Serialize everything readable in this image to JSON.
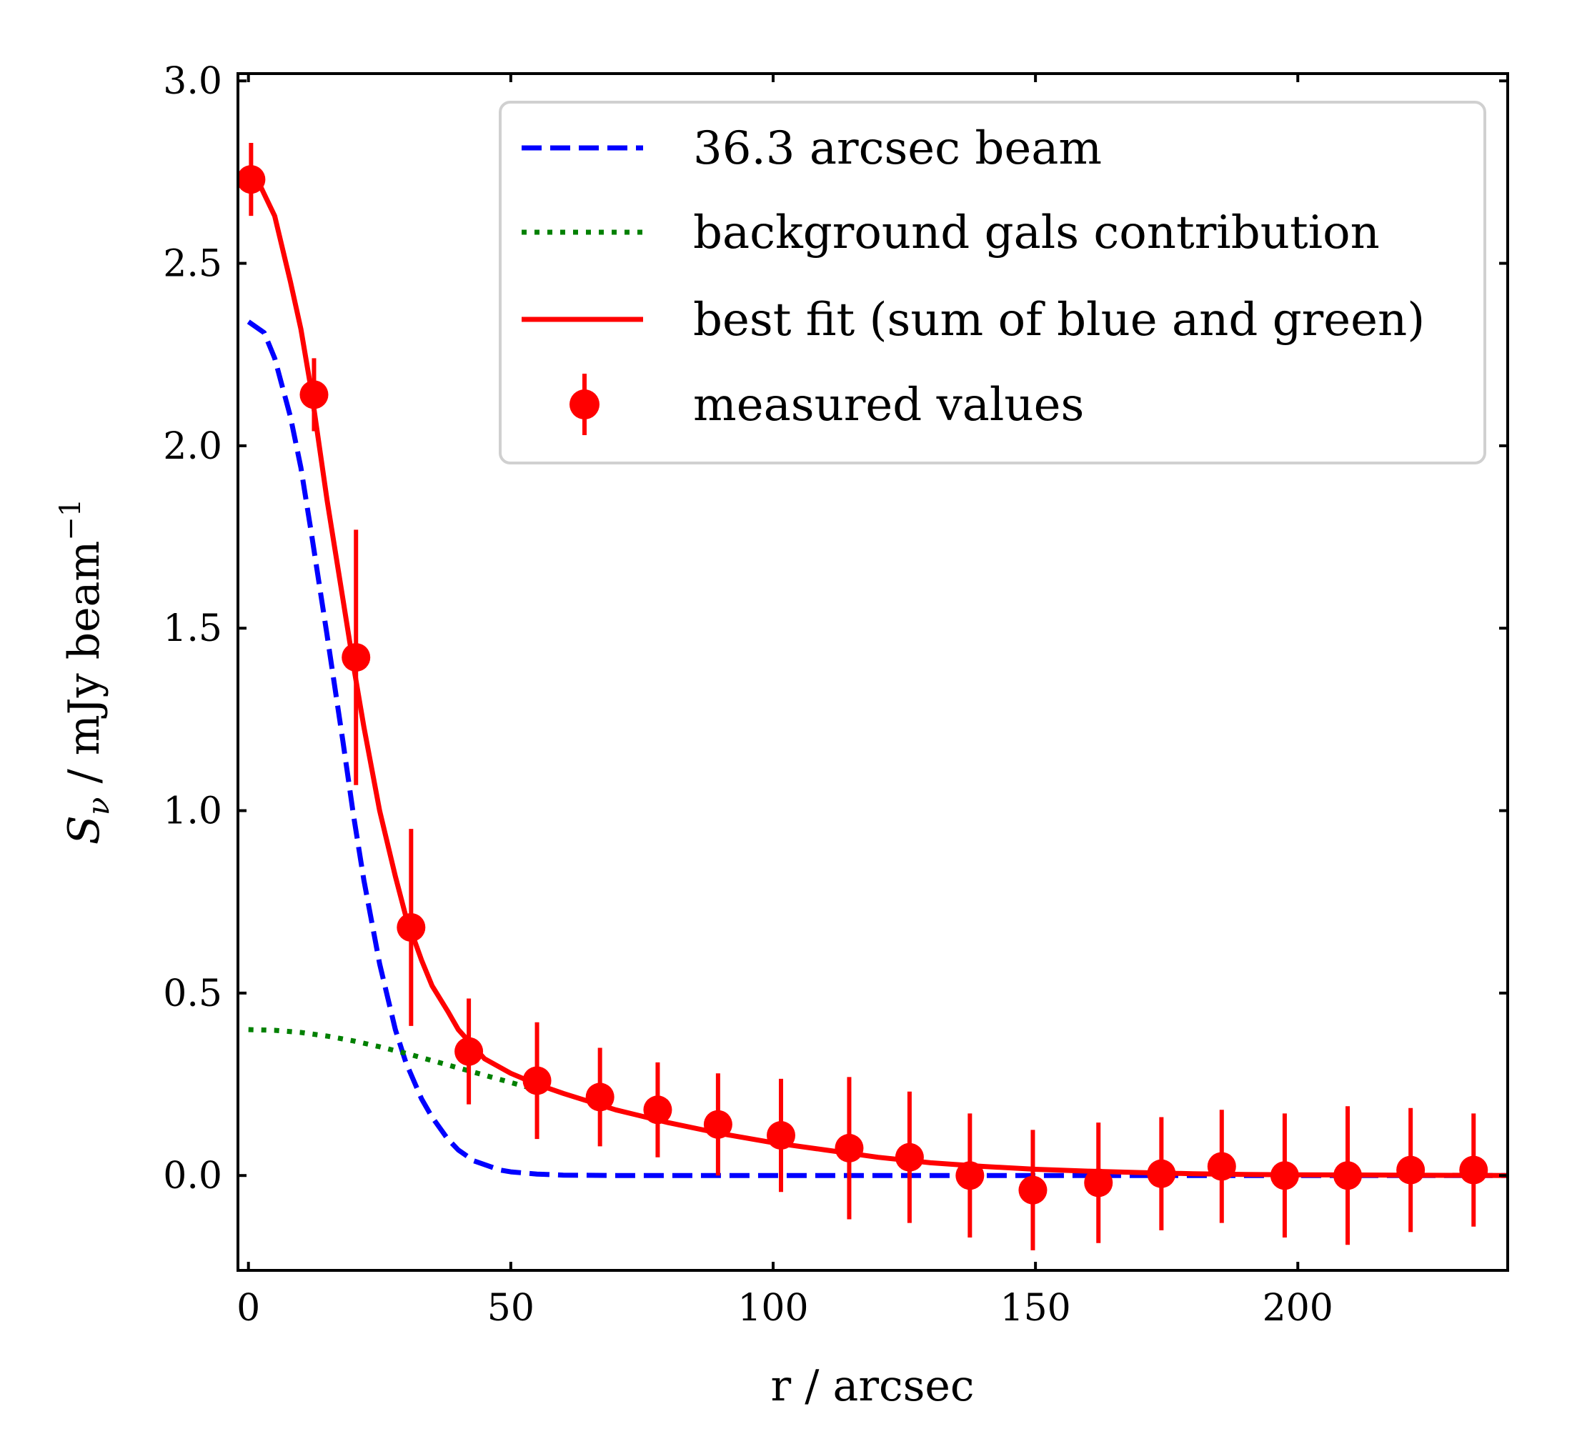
{
  "chart_data": {
    "type": "line",
    "title": "",
    "xlabel": "r / arcsec",
    "ylabel_main": "S",
    "ylabel_subscript": "ν",
    "ylabel_rest": " / mJy beam",
    "ylabel_superscript": "−1",
    "xlim": [
      -2,
      240
    ],
    "ylim": [
      -0.26,
      3.02
    ],
    "xticks": [
      0,
      50,
      100,
      150,
      200
    ],
    "xtick_labels": [
      "0",
      "50",
      "100",
      "150",
      "200"
    ],
    "yticks": [
      0.0,
      0.5,
      1.0,
      1.5,
      2.0,
      2.5,
      3.0
    ],
    "ytick_labels": [
      "0.0",
      "0.5",
      "1.0",
      "1.5",
      "2.0",
      "2.5",
      "3.0"
    ],
    "grid": false,
    "legend_position": "top-right",
    "series": [
      {
        "name": "36.3 arcsec beam",
        "style": "dashed",
        "color": "#0000ff",
        "x": [
          0,
          3,
          5,
          8,
          10,
          12,
          15,
          18,
          20,
          22,
          25,
          28,
          30,
          33,
          35,
          38,
          40,
          43,
          45,
          48,
          50,
          55,
          60,
          70,
          80,
          90,
          100,
          120,
          140,
          160,
          180,
          200,
          220,
          240
        ],
        "y": [
          2.34,
          2.31,
          2.24,
          2.08,
          1.94,
          1.76,
          1.48,
          1.19,
          0.99,
          0.81,
          0.58,
          0.4,
          0.31,
          0.21,
          0.16,
          0.1,
          0.07,
          0.04,
          0.03,
          0.015,
          0.01,
          0.004,
          0.001,
          0,
          0,
          0,
          0,
          0,
          0,
          0,
          0,
          0,
          0,
          0
        ]
      },
      {
        "name": "background gals contribution",
        "style": "dotted",
        "color": "#008000",
        "x": [
          0,
          5,
          10,
          15,
          20,
          25,
          30,
          35,
          40,
          45,
          50,
          55
        ],
        "y": [
          0.4,
          0.398,
          0.392,
          0.382,
          0.369,
          0.353,
          0.335,
          0.315,
          0.295,
          0.275,
          0.255,
          0.235
        ]
      },
      {
        "name": "best fit (sum of blue and green)",
        "style": "solid",
        "color": "#ff0000",
        "x": [
          0,
          2,
          5,
          8,
          10,
          12,
          15,
          18,
          20,
          22,
          25,
          28,
          30,
          33,
          35,
          38,
          40,
          45,
          50,
          55,
          60,
          70,
          80,
          90,
          100,
          110,
          120,
          130,
          140,
          150,
          160,
          170,
          180,
          190,
          200,
          220,
          240
        ],
        "y": [
          2.74,
          2.72,
          2.63,
          2.45,
          2.32,
          2.15,
          1.85,
          1.58,
          1.4,
          1.23,
          1.0,
          0.82,
          0.71,
          0.59,
          0.52,
          0.45,
          0.4,
          0.32,
          0.28,
          0.25,
          0.225,
          0.18,
          0.145,
          0.115,
          0.09,
          0.07,
          0.05,
          0.035,
          0.025,
          0.017,
          0.012,
          0.008,
          0.005,
          0.003,
          0.002,
          0.001,
          0.0
        ]
      }
    ],
    "points": {
      "name": "measured values",
      "color": "#ff0000",
      "x": [
        0.5,
        12.5,
        20.5,
        31,
        42,
        55,
        67,
        78,
        89.5,
        101.5,
        114.5,
        126,
        137.5,
        149.5,
        162,
        174,
        185.5,
        197.5,
        209.5,
        221.5,
        233.5
      ],
      "y": [
        2.73,
        2.14,
        1.42,
        0.68,
        0.34,
        0.26,
        0.215,
        0.18,
        0.14,
        0.11,
        0.075,
        0.05,
        0.0,
        -0.04,
        -0.02,
        0.005,
        0.025,
        0.0,
        0.0,
        0.015,
        0.015
      ],
      "yerr": [
        0.1,
        0.1,
        0.35,
        0.27,
        0.145,
        0.16,
        0.135,
        0.13,
        0.14,
        0.155,
        0.195,
        0.18,
        0.17,
        0.165,
        0.165,
        0.155,
        0.155,
        0.17,
        0.19,
        0.17,
        0.155
      ]
    }
  }
}
